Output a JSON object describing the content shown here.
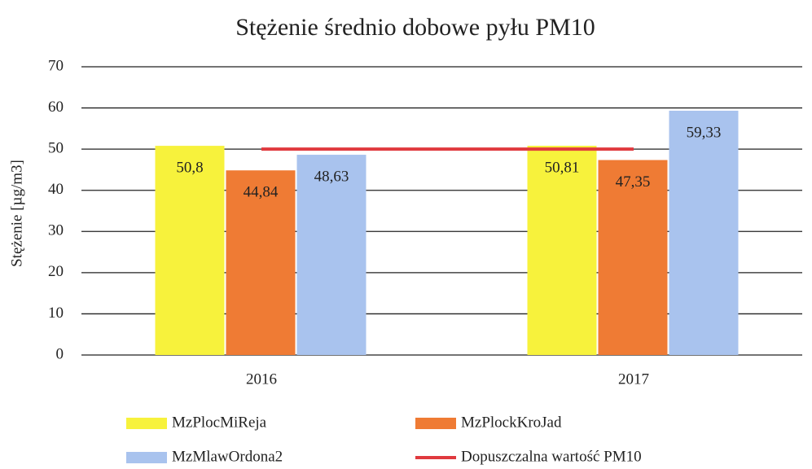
{
  "chart_data": {
    "type": "bar",
    "title": "Stężenie średnio dobowe pyłu PM10",
    "ylabel": "Stężenie [µg/m3]",
    "categories": [
      "2016",
      "2017"
    ],
    "series": [
      {
        "name": "MzPlocMiReja",
        "color": "#f7f23c",
        "values": [
          50.8,
          50.81
        ],
        "value_labels": [
          "50,8",
          "50,81"
        ]
      },
      {
        "name": "MzPlockKroJad",
        "color": "#ef7b34",
        "values": [
          44.84,
          47.35
        ],
        "value_labels": [
          "44,84",
          "47,35"
        ]
      },
      {
        "name": "MzMlawOrdona2",
        "color": "#a9c3ee",
        "values": [
          48.63,
          59.33
        ],
        "value_labels": [
          "48,63",
          "59,33"
        ]
      },
      {
        "name": "Dopuszczalna wartość PM10",
        "color": "#e0393e",
        "type": "line",
        "values": [
          50,
          50
        ]
      }
    ],
    "ylim": [
      0,
      70
    ],
    "yticks": [
      0,
      10,
      20,
      30,
      40,
      50,
      60,
      70
    ],
    "grid": true
  }
}
